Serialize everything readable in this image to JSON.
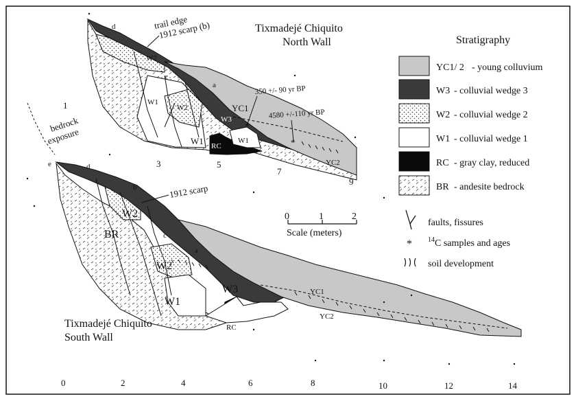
{
  "north_wall": {
    "title_line1": "Tixmadejé Chiquito",
    "title_line2": "North Wall",
    "callouts": {
      "trail_edge": "trail edge",
      "scarp_b": "1912 scarp (b)",
      "bedrock_line1": "bedrock",
      "bedrock_line2": "exposure"
    },
    "age_upper": "350 +/- 90 yr BP",
    "age_lower": "4580 +/-110 yr BP",
    "units": {
      "w1a": "W1",
      "w2a": "W2",
      "w1b": "W1",
      "w1c": "W1",
      "rc": "RC",
      "w3": "W3",
      "yc1": "YC1",
      "yc2": "YC2",
      "w2b": "W2"
    },
    "points": {
      "d": "d",
      "c": "c",
      "a": "a",
      "one": "1"
    },
    "grid_numbers": [
      "3",
      "5",
      "7",
      "9"
    ]
  },
  "south_wall": {
    "title_line1": "Tixmadejé Chiquito",
    "title_line2": "South Wall",
    "callouts": {
      "scarp": "1912 scarp"
    },
    "units": {
      "br": "BR",
      "w2a": "W2",
      "w2b": "W2",
      "w1": "W1",
      "rc": "RC",
      "w3": "W3",
      "yc1": "YC1",
      "yc2": "YC2"
    },
    "points": {
      "e": "e",
      "d": "d",
      "b": "b",
      "c": "c",
      "a": "a"
    }
  },
  "scale_bar": {
    "ticks": [
      "0",
      "1",
      "2"
    ],
    "label": "Scale (meters)"
  },
  "legend": {
    "title": "Stratigraphy",
    "items": [
      {
        "key": "YC1/ 2",
        "desc": "- young colluvium",
        "fill": "#c8c8c8"
      },
      {
        "key": "W3",
        "desc": "- colluvial wedge 3",
        "fill": "#3a3a3a"
      },
      {
        "key": "W2",
        "desc": "- colluvial wedge 2",
        "fill": "dots"
      },
      {
        "key": "W1",
        "desc": "- colluvial wedge 1",
        "fill": "#ffffff"
      },
      {
        "key": "RC",
        "desc": "- gray clay, reduced",
        "fill": "#0a0a0a"
      },
      {
        "key": "BR",
        "desc": "- andesite bedrock",
        "fill": "dashes"
      }
    ],
    "symbols": [
      {
        "icon": "fault-icon",
        "label": "faults, fissures"
      },
      {
        "icon": "asterisk-icon",
        "sup": "14",
        "label": "C samples and ages"
      },
      {
        "icon": "soil-icon",
        "label": "soil development"
      }
    ]
  },
  "bottom_axis": [
    "0",
    "2",
    "4",
    "6",
    "8",
    "10",
    "12",
    "14"
  ]
}
